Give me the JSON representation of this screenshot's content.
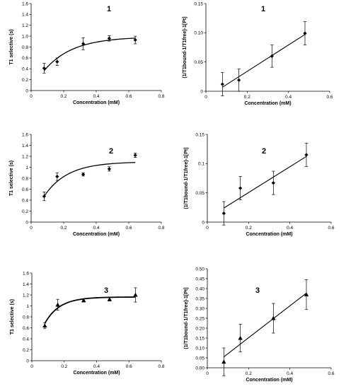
{
  "chart_data": [
    {
      "type": "scatter",
      "title": "1",
      "xlabel": "Concentration (mM)",
      "ylabel": "T1 selective (s)",
      "xlim": [
        0,
        0.8
      ],
      "ylim": [
        0,
        1.6
      ],
      "xticks": [
        "0",
        "0.2",
        "0.4",
        "0.6",
        "0.8"
      ],
      "yticks": [
        "0",
        "0.2",
        "0.4",
        "0.6",
        "0.8",
        "1.0",
        "1.2",
        "1.4",
        "1.6"
      ],
      "marker": "diamond",
      "fit": "saturation",
      "points": [
        {
          "x": 0.08,
          "y": 0.41,
          "err": 0.09
        },
        {
          "x": 0.16,
          "y": 0.53,
          "err": 0.07
        },
        {
          "x": 0.32,
          "y": 0.86,
          "err": 0.11
        },
        {
          "x": 0.48,
          "y": 0.96,
          "err": 0.05
        },
        {
          "x": 0.64,
          "y": 0.93,
          "err": 0.07
        }
      ]
    },
    {
      "type": "scatter",
      "title": "1",
      "xlabel": "Concentration (mM)",
      "ylabel": "(1/T1bound-1/T1free)-1[Pt]",
      "xlim": [
        0,
        0.6
      ],
      "ylim": [
        0,
        0.15
      ],
      "xticks": [
        "0",
        "0.2",
        "0.4",
        "0.6"
      ],
      "yticks": [
        "0",
        "0.05",
        "0.10",
        "0.15"
      ],
      "marker": "diamond",
      "fit": "linear",
      "points": [
        {
          "x": 0.08,
          "y": 0.012,
          "err": 0.02
        },
        {
          "x": 0.16,
          "y": 0.019,
          "err": 0.019
        },
        {
          "x": 0.32,
          "y": 0.06,
          "err": 0.019
        },
        {
          "x": 0.48,
          "y": 0.099,
          "err": 0.02
        }
      ]
    },
    {
      "type": "scatter",
      "title": "2",
      "xlabel": "Concentration (mM)",
      "ylabel": "T1 selective (s)",
      "xlim": [
        0,
        0.8
      ],
      "ylim": [
        0,
        1.6
      ],
      "xticks": [
        "0",
        "0.2",
        "0.4",
        "0.6",
        "0.8"
      ],
      "yticks": [
        "0",
        "0.2",
        "0.4",
        "0.6",
        "0.8",
        "1",
        "1.2",
        "1.4",
        "1.6"
      ],
      "marker": "diamond",
      "fit": "saturation",
      "points": [
        {
          "x": 0.08,
          "y": 0.47,
          "err": 0.08
        },
        {
          "x": 0.16,
          "y": 0.83,
          "err": 0.07
        },
        {
          "x": 0.32,
          "y": 0.87,
          "err": 0.03
        },
        {
          "x": 0.48,
          "y": 0.97,
          "err": 0.04
        },
        {
          "x": 0.64,
          "y": 1.22,
          "err": 0.04
        }
      ]
    },
    {
      "type": "scatter",
      "title": "2",
      "xlabel": "Concentration (mM)",
      "ylabel": "(1/T1bound-1/T1free)-1[Pt]",
      "xlim": [
        0,
        0.6
      ],
      "ylim": [
        0,
        0.15
      ],
      "xticks": [
        "0",
        "0.2",
        "0.4",
        "0.6"
      ],
      "yticks": [
        "0",
        "0.05",
        "0.1",
        "0.15"
      ],
      "marker": "diamond",
      "fit": "linear",
      "points": [
        {
          "x": 0.08,
          "y": 0.015,
          "err": 0.02
        },
        {
          "x": 0.16,
          "y": 0.058,
          "err": 0.02
        },
        {
          "x": 0.32,
          "y": 0.067,
          "err": 0.02
        },
        {
          "x": 0.48,
          "y": 0.115,
          "err": 0.02
        }
      ]
    },
    {
      "type": "scatter",
      "title": "3",
      "xlabel": "Concentration (mM)",
      "ylabel": "T1 selective (s)",
      "xlim": [
        0,
        0.8
      ],
      "ylim": [
        0,
        1.6
      ],
      "xticks": [
        "0",
        "0.2",
        "0.4",
        "0.6",
        "0.8"
      ],
      "yticks": [
        "0",
        "0.2",
        "0.4",
        "0.6",
        "0.8",
        "1",
        "1.2",
        "1.4",
        "1.6"
      ],
      "marker": "triangle",
      "fit": "saturation",
      "points": [
        {
          "x": 0.08,
          "y": 0.64,
          "err": 0.05
        },
        {
          "x": 0.16,
          "y": 1.02,
          "err": 0.1
        },
        {
          "x": 0.32,
          "y": 1.1,
          "err": 0.03
        },
        {
          "x": 0.48,
          "y": 1.12,
          "err": 0.03
        },
        {
          "x": 0.64,
          "y": 1.2,
          "err": 0.13
        }
      ]
    },
    {
      "type": "scatter",
      "title": "3",
      "xlabel": "Concentration (mM)",
      "ylabel": "(1/T1bound-1/T1free)-1[Pt]",
      "xlim": [
        0,
        0.6
      ],
      "ylim": [
        0,
        0.5
      ],
      "xticks": [
        "0",
        "0.2",
        "0.4",
        "0.6"
      ],
      "yticks": [
        "0.00",
        "0.05",
        "0.10",
        "0.15",
        "0.20",
        "0.25",
        "0.30",
        "0.35",
        "0.40",
        "0.45",
        "0.50"
      ],
      "marker": "triangle",
      "fit": "linear",
      "points": [
        {
          "x": 0.08,
          "y": 0.03,
          "err": 0.07
        },
        {
          "x": 0.16,
          "y": 0.15,
          "err": 0.07
        },
        {
          "x": 0.32,
          "y": 0.25,
          "err": 0.075
        },
        {
          "x": 0.48,
          "y": 0.37,
          "err": 0.075
        }
      ]
    }
  ]
}
